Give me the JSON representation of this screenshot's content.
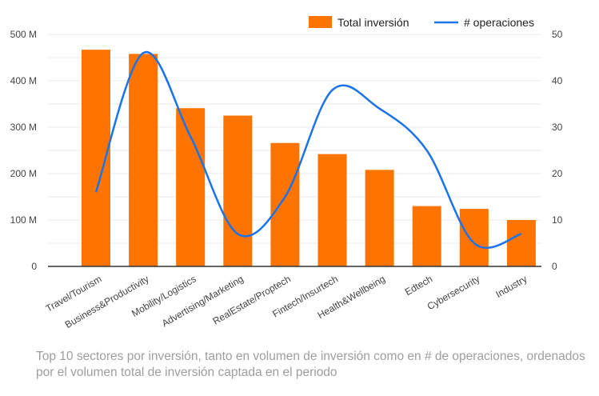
{
  "chart_data": {
    "type": "bar+line",
    "categories": [
      "Travel/Tourism",
      "Business&Productivity",
      "Mobility/Logistics",
      "Advertising/Marketing",
      "RealEstate/Proptech",
      "Fintech/Insurtech",
      "Health&Wellbeing",
      "Edtech",
      "Cybersecurity",
      "Industry"
    ],
    "series": [
      {
        "name": "Total inversión",
        "type": "bar",
        "axis": "left",
        "color": "#ff7400",
        "values": [
          467,
          458,
          341,
          325,
          266,
          242,
          208,
          130,
          124,
          100
        ]
      },
      {
        "name": "# operaciones",
        "type": "line",
        "axis": "right",
        "color": "#1a73e8",
        "values": [
          16,
          46,
          28,
          7,
          15,
          38,
          34,
          25,
          5,
          7
        ]
      }
    ],
    "left_axis": {
      "ylim": [
        0,
        500
      ],
      "ticks": [
        0,
        100,
        200,
        300,
        400,
        500
      ],
      "tick_labels": [
        "0",
        "100 M",
        "200 M",
        "300 M",
        "400 M",
        "500 M"
      ]
    },
    "right_axis": {
      "ylim": [
        0,
        50
      ],
      "ticks": [
        0,
        10,
        20,
        30,
        40,
        50
      ],
      "tick_labels": [
        "0",
        "10",
        "20",
        "30",
        "40",
        "50"
      ]
    },
    "grid": true,
    "legend": "top-right"
  },
  "caption": "Top 10 sectores por inversión, tanto en volumen de inversión como en # de operaciones, ordenados por el volumen total de inversión captada en el periodo"
}
